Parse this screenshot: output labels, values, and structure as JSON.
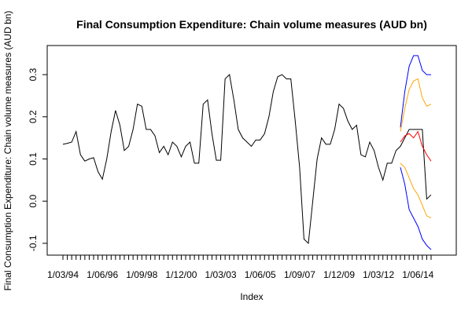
{
  "chart_data": {
    "type": "line",
    "title": "Final Consumption Expenditure: Chain volume measures (AUD bn)",
    "x_label": "Index",
    "y_label": "Final Consumption Expenditure: Chain volume measures (AUD bn)",
    "categories": [
      "1/03/94",
      null,
      null,
      null,
      null,
      null,
      null,
      null,
      null,
      "1/06/96",
      null,
      null,
      null,
      null,
      null,
      null,
      null,
      null,
      "1/09/98",
      null,
      null,
      null,
      null,
      null,
      null,
      null,
      null,
      "1/12/00",
      null,
      null,
      null,
      null,
      null,
      null,
      null,
      null,
      "1/03/03",
      null,
      null,
      null,
      null,
      null,
      null,
      null,
      null,
      "1/06/05",
      null,
      null,
      null,
      null,
      null,
      null,
      null,
      null,
      "1/09/07",
      null,
      null,
      null,
      null,
      null,
      null,
      null,
      null,
      "1/12/09",
      null,
      null,
      null,
      null,
      null,
      null,
      null,
      null,
      "1/03/12",
      null,
      null,
      null,
      null,
      null,
      null,
      null,
      null,
      "1/06/14",
      null,
      null,
      null
    ],
    "ylim": [
      -0.128,
      0.369
    ],
    "yticks": [
      -0.1,
      {
        "value": 0,
        "label": "0.0"
      },
      0.1,
      0.2,
      0.3
    ],
    "series": [
      {
        "color": "#000000",
        "values": [
          0.135,
          0.137,
          0.14,
          0.165,
          0.11,
          0.095,
          0.1,
          0.103,
          0.07,
          0.052,
          0.1,
          0.165,
          0.215,
          0.18,
          0.12,
          0.13,
          0.17,
          0.23,
          0.225,
          0.17,
          0.17,
          0.155,
          0.115,
          0.13,
          0.11,
          0.14,
          0.13,
          0.105,
          0.13,
          0.14,
          0.09,
          0.09,
          0.23,
          0.24,
          0.16,
          0.097,
          0.097,
          0.29,
          0.3,
          0.24,
          0.17,
          0.15,
          0.14,
          0.13,
          0.145,
          0.145,
          0.16,
          0.2,
          0.26,
          0.295,
          0.3,
          0.29,
          0.29,
          0.19,
          0.08,
          -0.09,
          -0.1,
          0.0,
          0.1,
          0.15,
          0.135,
          0.135,
          0.17,
          0.23,
          0.22,
          0.19,
          0.17,
          0.18,
          0.11,
          0.105,
          0.14,
          0.12,
          0.08,
          0.05,
          0.09,
          0.09,
          0.12,
          0.13,
          0.15,
          0.17,
          0.17,
          0.17,
          0.17,
          0.005,
          0.015
        ]
      },
      {
        "color": "#0000ff",
        "values": [
          null,
          null,
          null,
          null,
          null,
          null,
          null,
          null,
          null,
          null,
          null,
          null,
          null,
          null,
          null,
          null,
          null,
          null,
          null,
          null,
          null,
          null,
          null,
          null,
          null,
          null,
          null,
          null,
          null,
          null,
          null,
          null,
          null,
          null,
          null,
          null,
          null,
          null,
          null,
          null,
          null,
          null,
          null,
          null,
          null,
          null,
          null,
          null,
          null,
          null,
          null,
          null,
          null,
          null,
          null,
          null,
          null,
          null,
          null,
          null,
          null,
          null,
          null,
          null,
          null,
          null,
          null,
          null,
          null,
          null,
          null,
          null,
          null,
          null,
          null,
          null,
          null,
          0.175,
          0.26,
          0.32,
          0.345,
          0.345,
          0.31,
          0.3,
          0.3
        ]
      },
      {
        "color": "#ffa500",
        "values": [
          null,
          null,
          null,
          null,
          null,
          null,
          null,
          null,
          null,
          null,
          null,
          null,
          null,
          null,
          null,
          null,
          null,
          null,
          null,
          null,
          null,
          null,
          null,
          null,
          null,
          null,
          null,
          null,
          null,
          null,
          null,
          null,
          null,
          null,
          null,
          null,
          null,
          null,
          null,
          null,
          null,
          null,
          null,
          null,
          null,
          null,
          null,
          null,
          null,
          null,
          null,
          null,
          null,
          null,
          null,
          null,
          null,
          null,
          null,
          null,
          null,
          null,
          null,
          null,
          null,
          null,
          null,
          null,
          null,
          null,
          null,
          null,
          null,
          null,
          null,
          null,
          null,
          0.165,
          0.22,
          0.265,
          0.285,
          0.29,
          0.245,
          0.225,
          0.23
        ]
      },
      {
        "color": "#ff0000",
        "values": [
          null,
          null,
          null,
          null,
          null,
          null,
          null,
          null,
          null,
          null,
          null,
          null,
          null,
          null,
          null,
          null,
          null,
          null,
          null,
          null,
          null,
          null,
          null,
          null,
          null,
          null,
          null,
          null,
          null,
          null,
          null,
          null,
          null,
          null,
          null,
          null,
          null,
          null,
          null,
          null,
          null,
          null,
          null,
          null,
          null,
          null,
          null,
          null,
          null,
          null,
          null,
          null,
          null,
          null,
          null,
          null,
          null,
          null,
          null,
          null,
          null,
          null,
          null,
          null,
          null,
          null,
          null,
          null,
          null,
          null,
          null,
          null,
          null,
          null,
          null,
          null,
          null,
          0.14,
          0.155,
          0.16,
          0.15,
          0.165,
          0.13,
          0.11,
          0.095
        ]
      },
      {
        "color": "#ffa500",
        "values": [
          null,
          null,
          null,
          null,
          null,
          null,
          null,
          null,
          null,
          null,
          null,
          null,
          null,
          null,
          null,
          null,
          null,
          null,
          null,
          null,
          null,
          null,
          null,
          null,
          null,
          null,
          null,
          null,
          null,
          null,
          null,
          null,
          null,
          null,
          null,
          null,
          null,
          null,
          null,
          null,
          null,
          null,
          null,
          null,
          null,
          null,
          null,
          null,
          null,
          null,
          null,
          null,
          null,
          null,
          null,
          null,
          null,
          null,
          null,
          null,
          null,
          null,
          null,
          null,
          null,
          null,
          null,
          null,
          null,
          null,
          null,
          null,
          null,
          null,
          null,
          null,
          null,
          0.09,
          0.08,
          0.055,
          0.03,
          0.015,
          -0.01,
          -0.035,
          -0.04
        ]
      },
      {
        "color": "#0000ff",
        "values": [
          null,
          null,
          null,
          null,
          null,
          null,
          null,
          null,
          null,
          null,
          null,
          null,
          null,
          null,
          null,
          null,
          null,
          null,
          null,
          null,
          null,
          null,
          null,
          null,
          null,
          null,
          null,
          null,
          null,
          null,
          null,
          null,
          null,
          null,
          null,
          null,
          null,
          null,
          null,
          null,
          null,
          null,
          null,
          null,
          null,
          null,
          null,
          null,
          null,
          null,
          null,
          null,
          null,
          null,
          null,
          null,
          null,
          null,
          null,
          null,
          null,
          null,
          null,
          null,
          null,
          null,
          null,
          null,
          null,
          null,
          null,
          null,
          null,
          null,
          null,
          null,
          null,
          0.08,
          0.04,
          -0.02,
          -0.04,
          -0.06,
          -0.09,
          -0.105,
          -0.115
        ]
      }
    ]
  }
}
